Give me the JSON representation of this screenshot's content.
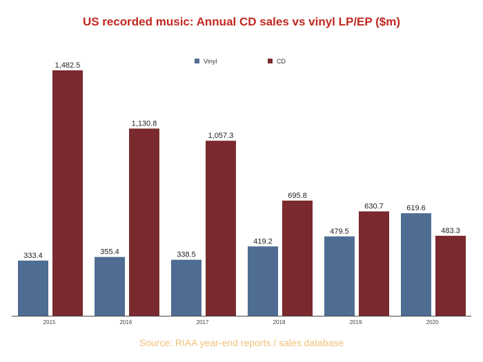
{
  "chart_data": {
    "type": "bar",
    "title": "US recorded music: Annual CD sales vs vinyl LP/EP ($m)",
    "categories": [
      "2015",
      "2016",
      "2017",
      "2018",
      "2019",
      "2020"
    ],
    "series": [
      {
        "name": "Vinyl",
        "color": "#4f6d93",
        "values": [
          333.4,
          355.4,
          338.5,
          419.2,
          479.5,
          619.6
        ],
        "labels": [
          "333.4",
          "355.4",
          "338.5",
          "419.2",
          "479.5",
          "619.6"
        ]
      },
      {
        "name": "CD",
        "color": "#7a2a2e",
        "values": [
          1482.5,
          1130.8,
          1057.3,
          695.8,
          630.7,
          483.3
        ],
        "labels": [
          "1,482.5",
          "1,130.8",
          "1,057.3",
          "695.8",
          "630.7",
          "483.3"
        ]
      }
    ],
    "xlabel": "",
    "ylabel": "",
    "ylim": [
      0,
      1482.5
    ],
    "grid": false,
    "legend": "top-center",
    "source": "Source: RIAA year-end reports / sales database"
  }
}
